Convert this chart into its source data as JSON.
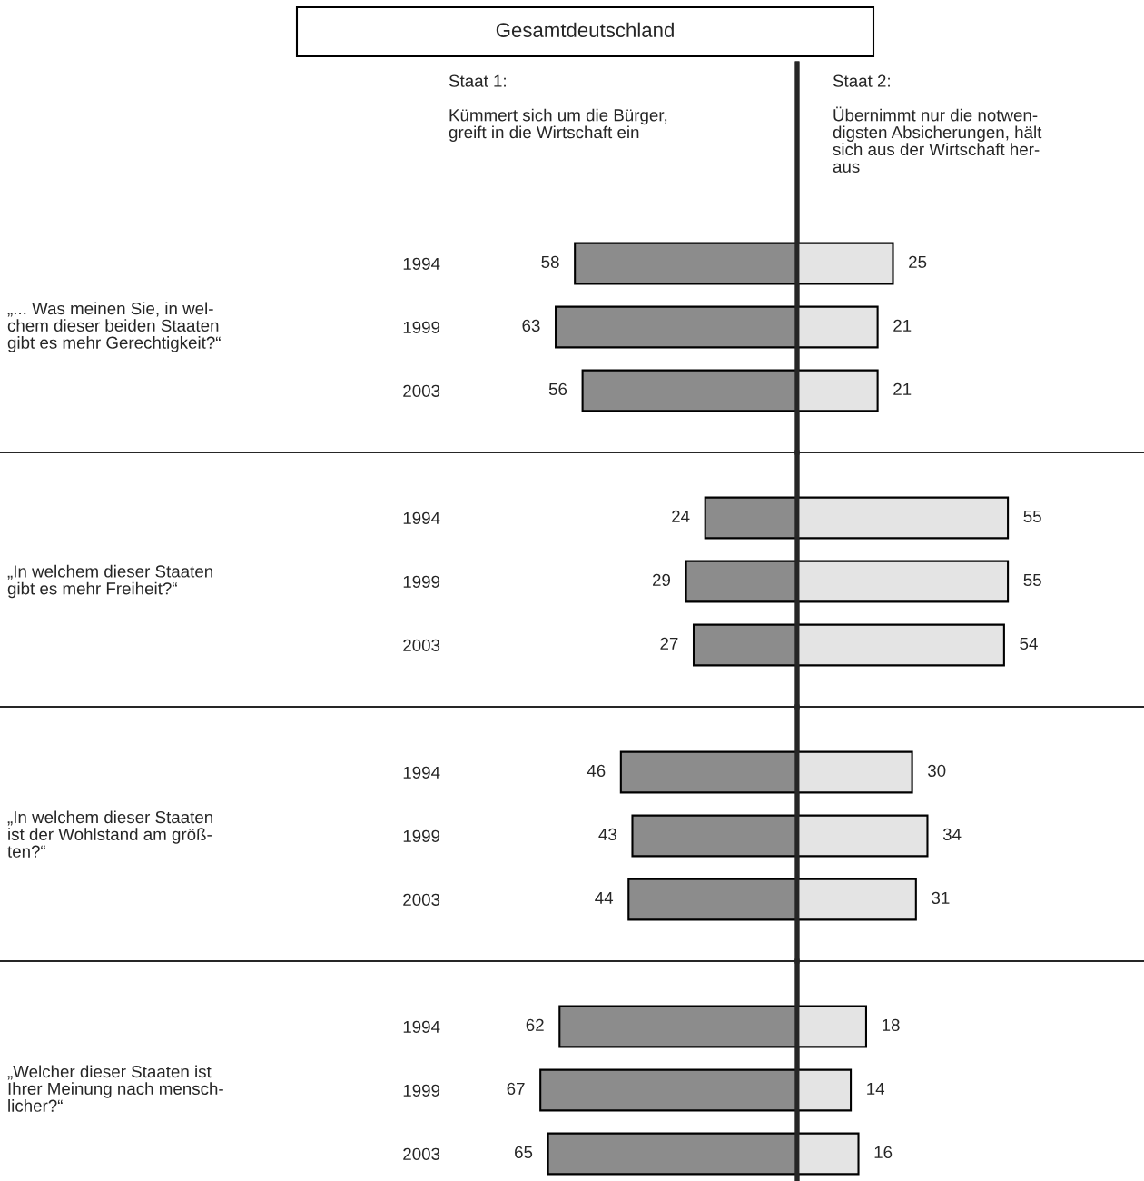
{
  "chart_data": [
    {
      "type": "bar",
      "orientation": "horizontal",
      "title": "Gesamtdeutschland",
      "ylabel": "„... Was meinen Sie, in wel-\nchem dieser beiden Staaten\ngibt es mehr Gerechtigkeit?“",
      "categories": [
        "1994",
        "1999",
        "2003"
      ],
      "tick_labels": "y",
      "xlim": [
        208,
        0
      ],
      "data_labels": true,
      "series": [
        {
          "name": "Staat 1:\n\nKümmert sich um die Bürger,\ngreift in die Wirtschaft ein",
          "color": "#8c8c8c",
          "values": [
            58,
            63,
            56
          ]
        }
      ]
    },
    {
      "type": "bar",
      "orientation": "horizontal",
      "categories": [
        "1994",
        "1999",
        "2003"
      ],
      "tick_labels": false,
      "data_labels": true,
      "series": [
        {
          "name": "Staat 2:\n\nÜbernimmt nur die notwen-\ndigsten Absicherungen, hält\nsich aus der Wirtschaft her-\naus",
          "color": "#e4e4e4",
          "values": [
            25,
            21,
            21
          ]
        }
      ]
    },
    {
      "type": "bar",
      "orientation": "horizontal",
      "ylabel": "„In welchem dieser Staaten\ngibt es mehr Freiheit?“",
      "categories": [
        "1994",
        "1999",
        "2003"
      ],
      "tick_labels": "y",
      "xlim": [
        208,
        0
      ],
      "data_labels": true,
      "series": [
        {
          "color": "#8c8c8c",
          "values": [
            24,
            29,
            27
          ]
        }
      ]
    },
    {
      "type": "bar",
      "orientation": "horizontal",
      "categories": [
        "1994",
        "1999",
        "2003"
      ],
      "tick_labels": false,
      "data_labels": true,
      "series": [
        {
          "color": "#e4e4e4",
          "values": [
            55,
            55,
            54
          ]
        }
      ]
    },
    {
      "type": "bar",
      "orientation": "horizontal",
      "ylabel": "„In welchem dieser Staaten\nist der Wohlstand am größ-\nten?“",
      "categories": [
        "1994",
        "1999",
        "2003"
      ],
      "tick_labels": "y",
      "xlim": [
        208,
        0
      ],
      "data_labels": true,
      "series": [
        {
          "color": "#8c8c8c",
          "values": [
            46,
            43,
            44
          ]
        }
      ]
    },
    {
      "type": "bar",
      "orientation": "horizontal",
      "categories": [
        "1994",
        "1999",
        "2003"
      ],
      "tick_labels": false,
      "data_labels": true,
      "series": [
        {
          "color": "#e4e4e4",
          "values": [
            30,
            34,
            31
          ]
        }
      ]
    },
    {
      "type": "bar",
      "orientation": "horizontal",
      "ylabel": "„Welcher dieser Staaten ist\nIhrer Meinung nach mensch-\nlicher?“",
      "categories": [
        "1994",
        "1999",
        "2003"
      ],
      "tick_labels": "y",
      "xlim": [
        208,
        0
      ],
      "data_labels": true,
      "series": [
        {
          "color": "#8c8c8c",
          "values": [
            62,
            67,
            65
          ]
        }
      ]
    },
    {
      "type": "bar",
      "orientation": "horizontal",
      "categories": [
        "1994",
        "1999",
        "2003"
      ],
      "tick_labels": false,
      "data_labels": true,
      "series": [
        {
          "color": "#e4e4e4",
          "values": [
            18,
            14,
            16
          ]
        }
      ]
    }
  ]
}
